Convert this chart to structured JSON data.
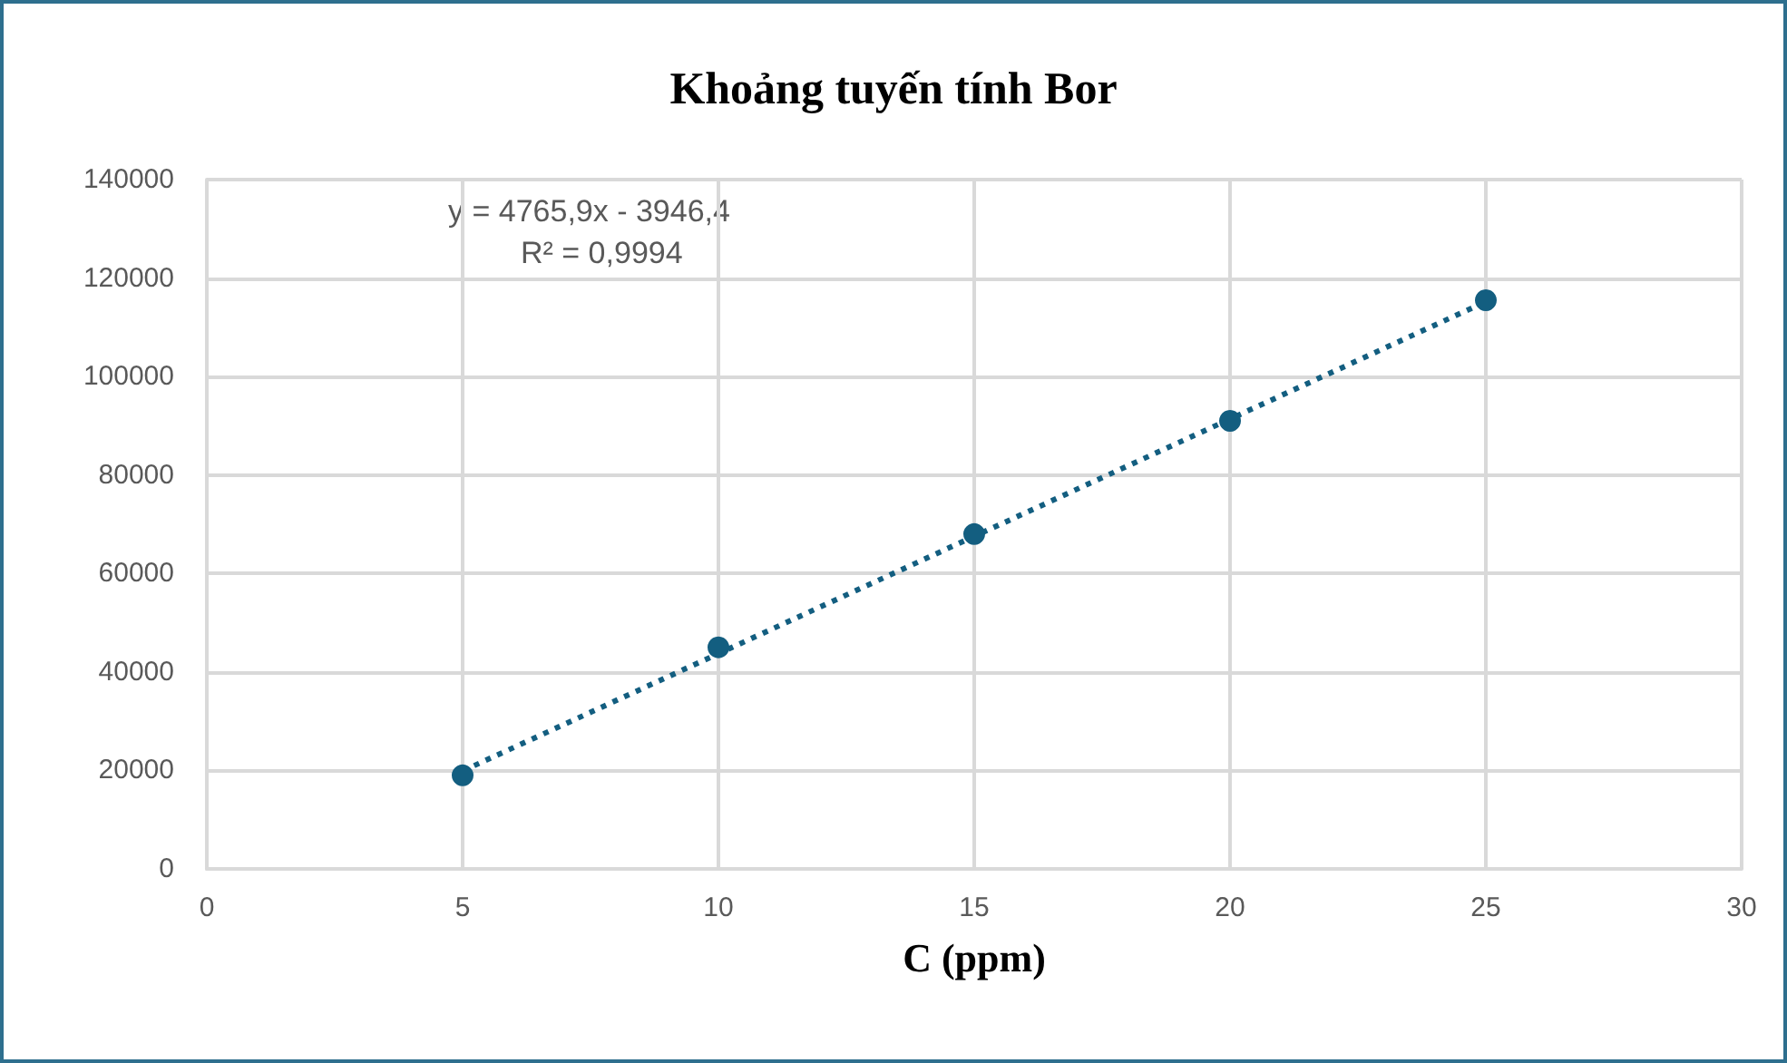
{
  "chart_data": {
    "type": "scatter",
    "title": "Khoảng tuyến tính Bor",
    "xlabel": "C (ppm)",
    "xlim": [
      0,
      30
    ],
    "xticks": [
      0,
      5,
      10,
      15,
      20,
      25,
      30
    ],
    "ylim": [
      0,
      140000
    ],
    "yticks": [
      0,
      20000,
      40000,
      60000,
      80000,
      100000,
      120000,
      140000
    ],
    "grid": true,
    "series": [
      {
        "color": "#135e80",
        "marker": "circle",
        "x": [
          5,
          10,
          15,
          20,
          25
        ],
        "values": [
          19000,
          45000,
          68000,
          91000,
          115500
        ]
      },
      {
        "type": "line",
        "color": "#135e80",
        "marker": "none",
        "line_style": "dotted",
        "x": [
          5,
          25
        ],
        "values": [
          19900,
          115200
        ]
      }
    ],
    "annotations": [
      "y = 4765,9x - 3946,4",
      "R² = 0,9994"
    ]
  }
}
